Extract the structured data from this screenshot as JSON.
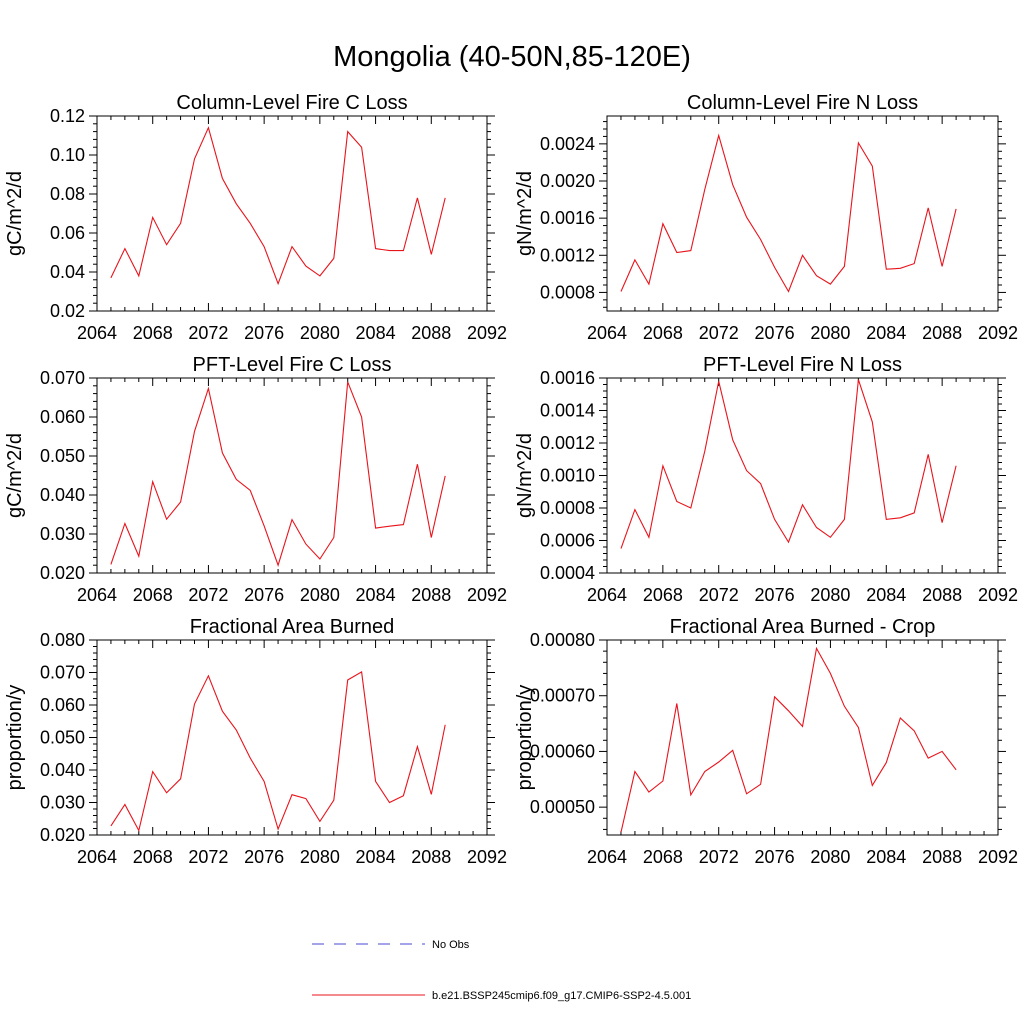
{
  "title": "Mongolia (40-50N,85-120E)",
  "legend": [
    {
      "label": "No Obs",
      "color": "#4a4ad0",
      "dash": "12,10"
    },
    {
      "label": "b.e21.BSSP245cmip6.f09_g17.CMIP6-SSP2-4.5.001",
      "color": "#e8141c",
      "dash": ""
    }
  ],
  "chart_data": [
    {
      "type": "line",
      "title": "Column-Level Fire C Loss",
      "ylabel": "gC/m^2/d",
      "xlim": [
        2064,
        2092
      ],
      "ylim": [
        0.02,
        0.12
      ],
      "xticks": [
        2064,
        2068,
        2072,
        2076,
        2080,
        2084,
        2088,
        2092
      ],
      "xtick_labels": [
        "2064",
        "2068",
        "2072",
        "2076",
        "2080",
        "2084",
        "2088",
        "2092"
      ],
      "yticks": [
        0.02,
        0.04,
        0.06,
        0.08,
        0.1,
        0.12
      ],
      "ytick_labels": [
        "0.02",
        "0.04",
        "0.06",
        "0.08",
        "0.10",
        "0.12"
      ],
      "x": [
        2065,
        2066,
        2067,
        2068,
        2069,
        2070,
        2071,
        2072,
        2073,
        2074,
        2075,
        2076,
        2077,
        2078,
        2079,
        2080,
        2081,
        2082,
        2083,
        2084,
        2085,
        2086,
        2087,
        2088,
        2089
      ],
      "values": [
        0.037,
        0.052,
        0.038,
        0.068,
        0.054,
        0.065,
        0.098,
        0.114,
        0.088,
        0.075,
        0.065,
        0.053,
        0.034,
        0.053,
        0.043,
        0.038,
        0.047,
        0.112,
        0.104,
        0.052,
        0.051,
        0.051,
        0.078,
        0.049,
        0.078
      ]
    },
    {
      "type": "line",
      "title": "Column-Level Fire N Loss",
      "ylabel": "gN/m^2/d",
      "xlim": [
        2064,
        2092
      ],
      "ylim": [
        0.0006,
        0.0027
      ],
      "xticks": [
        2064,
        2068,
        2072,
        2076,
        2080,
        2084,
        2088,
        2092
      ],
      "xtick_labels": [
        "2064",
        "2068",
        "2072",
        "2076",
        "2080",
        "2084",
        "2088",
        "2092"
      ],
      "yticks": [
        0.0008,
        0.0012,
        0.0016,
        0.002,
        0.0024
      ],
      "ytick_labels": [
        "0.0008",
        "0.0012",
        "0.0016",
        "0.0020",
        "0.0024"
      ],
      "x": [
        2065,
        2066,
        2067,
        2068,
        2069,
        2070,
        2071,
        2072,
        2073,
        2074,
        2075,
        2076,
        2077,
        2078,
        2079,
        2080,
        2081,
        2082,
        2083,
        2084,
        2085,
        2086,
        2087,
        2088,
        2089
      ],
      "values": [
        0.00081,
        0.00115,
        0.00089,
        0.00154,
        0.00123,
        0.00125,
        0.00191,
        0.00249,
        0.00196,
        0.00161,
        0.00137,
        0.00107,
        0.00081,
        0.0012,
        0.00098,
        0.00089,
        0.00108,
        0.00241,
        0.00216,
        0.00105,
        0.00106,
        0.00111,
        0.00171,
        0.00108,
        0.0017
      ]
    },
    {
      "type": "line",
      "title": "PFT-Level Fire C Loss",
      "ylabel": "gC/m^2/d",
      "xlim": [
        2064,
        2092
      ],
      "ylim": [
        0.02,
        0.07
      ],
      "xticks": [
        2064,
        2068,
        2072,
        2076,
        2080,
        2084,
        2088,
        2092
      ],
      "xtick_labels": [
        "2064",
        "2068",
        "2072",
        "2076",
        "2080",
        "2084",
        "2088",
        "2092"
      ],
      "yticks": [
        0.02,
        0.03,
        0.04,
        0.05,
        0.06,
        0.07
      ],
      "ytick_labels": [
        "0.020",
        "0.030",
        "0.040",
        "0.050",
        "0.060",
        "0.070"
      ],
      "x": [
        2065,
        2066,
        2067,
        2068,
        2069,
        2070,
        2071,
        2072,
        2073,
        2074,
        2075,
        2076,
        2077,
        2078,
        2079,
        2080,
        2081,
        2082,
        2083,
        2084,
        2085,
        2086,
        2087,
        2088,
        2089
      ],
      "values": [
        0.0222,
        0.0327,
        0.0243,
        0.0434,
        0.0338,
        0.0382,
        0.0563,
        0.0673,
        0.0508,
        0.044,
        0.0412,
        0.0321,
        0.022,
        0.0337,
        0.0274,
        0.0236,
        0.0291,
        0.069,
        0.06,
        0.0315,
        0.032,
        0.0324,
        0.0479,
        0.0291,
        0.0449
      ]
    },
    {
      "type": "line",
      "title": "PFT-Level Fire N Loss",
      "ylabel": "gN/m^2/d",
      "xlim": [
        2064,
        2092
      ],
      "ylim": [
        0.0004,
        0.0016
      ],
      "xticks": [
        2064,
        2068,
        2072,
        2076,
        2080,
        2084,
        2088,
        2092
      ],
      "xtick_labels": [
        "2064",
        "2068",
        "2072",
        "2076",
        "2080",
        "2084",
        "2088",
        "2092"
      ],
      "yticks": [
        0.0004,
        0.0006,
        0.0008,
        0.001,
        0.0012,
        0.0014,
        0.0016
      ],
      "ytick_labels": [
        "0.0004",
        "0.0006",
        "0.0008",
        "0.0010",
        "0.0012",
        "0.0014",
        "0.0016"
      ],
      "x": [
        2065,
        2066,
        2067,
        2068,
        2069,
        2070,
        2071,
        2072,
        2073,
        2074,
        2075,
        2076,
        2077,
        2078,
        2079,
        2080,
        2081,
        2082,
        2083,
        2084,
        2085,
        2086,
        2087,
        2088,
        2089
      ],
      "values": [
        0.00055,
        0.00079,
        0.00062,
        0.00106,
        0.00084,
        0.0008,
        0.00115,
        0.00158,
        0.00122,
        0.00103,
        0.00095,
        0.00073,
        0.00059,
        0.00082,
        0.00068,
        0.00062,
        0.00073,
        0.00159,
        0.00133,
        0.00073,
        0.00074,
        0.00077,
        0.00113,
        0.00071,
        0.00106
      ]
    },
    {
      "type": "line",
      "title": "Fractional Area Burned",
      "ylabel": "proportion/y",
      "xlim": [
        2064,
        2092
      ],
      "ylim": [
        0.02,
        0.08
      ],
      "xticks": [
        2064,
        2068,
        2072,
        2076,
        2080,
        2084,
        2088,
        2092
      ],
      "xtick_labels": [
        "2064",
        "2068",
        "2072",
        "2076",
        "2080",
        "2084",
        "2088",
        "2092"
      ],
      "yticks": [
        0.02,
        0.03,
        0.04,
        0.05,
        0.06,
        0.07,
        0.08
      ],
      "ytick_labels": [
        "0.020",
        "0.030",
        "0.040",
        "0.050",
        "0.060",
        "0.070",
        "0.080"
      ],
      "x": [
        2065,
        2066,
        2067,
        2068,
        2069,
        2070,
        2071,
        2072,
        2073,
        2074,
        2075,
        2076,
        2077,
        2078,
        2079,
        2080,
        2081,
        2082,
        2083,
        2084,
        2085,
        2086,
        2087,
        2088,
        2089
      ],
      "values": [
        0.0228,
        0.0294,
        0.0214,
        0.0395,
        0.033,
        0.0373,
        0.0603,
        0.069,
        0.0581,
        0.0523,
        0.0437,
        0.0365,
        0.0218,
        0.0324,
        0.0312,
        0.0242,
        0.0307,
        0.0677,
        0.0702,
        0.0365,
        0.03,
        0.0321,
        0.0472,
        0.0325,
        0.0539
      ]
    },
    {
      "type": "line",
      "title": "Fractional Area Burned - Crop",
      "ylabel": "proportion/y",
      "xlim": [
        2064,
        2092
      ],
      "ylim": [
        0.00045,
        0.0008
      ],
      "xticks": [
        2064,
        2068,
        2072,
        2076,
        2080,
        2084,
        2088,
        2092
      ],
      "xtick_labels": [
        "2064",
        "2068",
        "2072",
        "2076",
        "2080",
        "2084",
        "2088",
        "2092"
      ],
      "yticks": [
        0.0005,
        0.0006,
        0.0007,
        0.0008
      ],
      "ytick_labels": [
        "0.00050",
        "0.00060",
        "0.00070",
        "0.00080"
      ],
      "x": [
        2065,
        2066,
        2067,
        2068,
        2069,
        2070,
        2071,
        2072,
        2073,
        2074,
        2075,
        2076,
        2077,
        2078,
        2079,
        2080,
        2081,
        2082,
        2083,
        2084,
        2085,
        2086,
        2087,
        2088,
        2089
      ],
      "values": [
        0.000455,
        0.000564,
        0.000527,
        0.000547,
        0.000686,
        0.000522,
        0.000564,
        0.000581,
        0.000602,
        0.000524,
        0.000541,
        0.000698,
        0.000673,
        0.000645,
        0.000785,
        0.00074,
        0.000681,
        0.000643,
        0.000539,
        0.00058,
        0.00066,
        0.000637,
        0.000588,
        0.0006,
        0.000567
      ]
    }
  ]
}
